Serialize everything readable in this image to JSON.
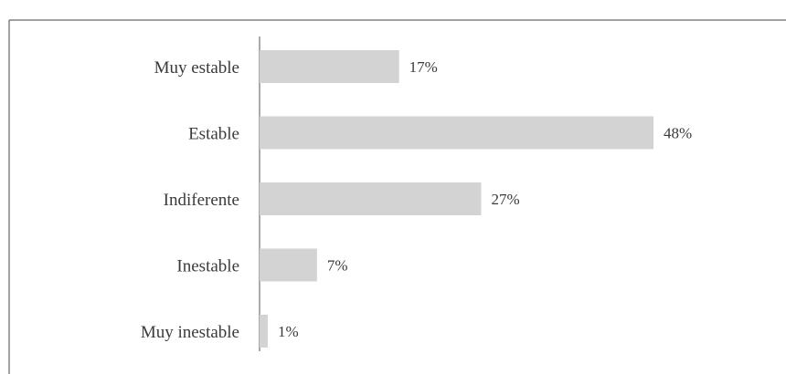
{
  "chart_data": {
    "type": "bar",
    "orientation": "horizontal",
    "categories": [
      "Muy estable",
      "Estable",
      "Indiferente",
      "Inestable",
      "Muy inestable"
    ],
    "values": [
      17,
      48,
      27,
      7,
      1
    ],
    "value_labels": [
      "17%",
      "48%",
      "27%",
      "7%",
      "1%"
    ],
    "unit": "%",
    "xlim": [
      0,
      48
    ],
    "grid": false,
    "legend": "none",
    "colors": {
      "bar": "#d3d3d3",
      "text": "#3a3a3a",
      "axis": "#555555",
      "frame": "#444444"
    }
  }
}
